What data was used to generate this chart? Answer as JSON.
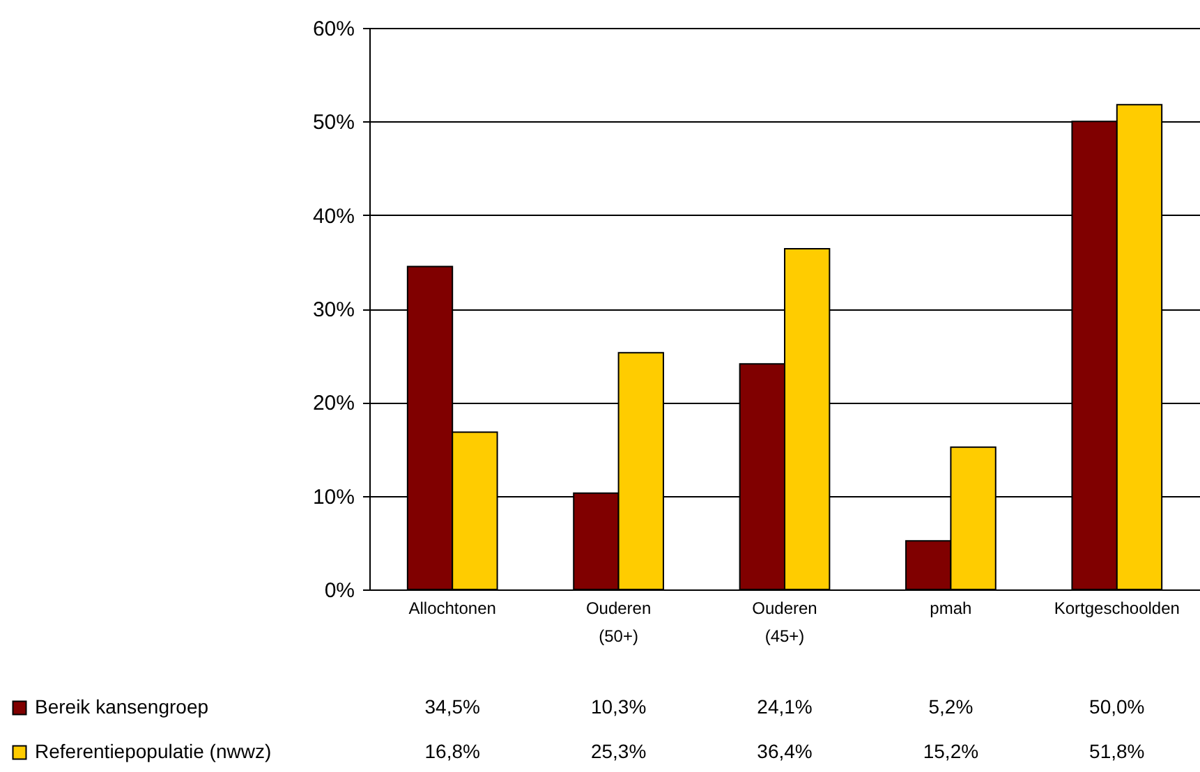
{
  "chart_data": {
    "type": "bar",
    "categories": [
      "Allochtonen",
      "Ouderen (50+)",
      "Ouderen (45+)",
      "pmah",
      "Kortgeschoolden"
    ],
    "series": [
      {
        "name": "Bereik kansengroep",
        "color": "#800000",
        "values": [
          34.5,
          10.3,
          24.1,
          5.2,
          50.0
        ],
        "value_labels": [
          "34,5%",
          "10,3%",
          "24,1%",
          "5,2%",
          "50,0%"
        ]
      },
      {
        "name": "Referentiepopulatie (nwwz)",
        "color": "#ffcc00",
        "values": [
          16.8,
          25.3,
          36.4,
          15.2,
          51.8
        ],
        "value_labels": [
          "16,8%",
          "25,3%",
          "36,4%",
          "15,2%",
          "51,8%"
        ]
      }
    ],
    "ylim": [
      0,
      60
    ],
    "yticks": [
      {
        "value": 0,
        "label": "0%"
      },
      {
        "value": 10,
        "label": "10%"
      },
      {
        "value": 20,
        "label": "20%"
      },
      {
        "value": 30,
        "label": "30%"
      },
      {
        "value": 40,
        "label": "40%"
      },
      {
        "value": 50,
        "label": "50%"
      },
      {
        "value": 60,
        "label": "60%"
      }
    ],
    "grid": "y",
    "legend": "bottom left"
  }
}
